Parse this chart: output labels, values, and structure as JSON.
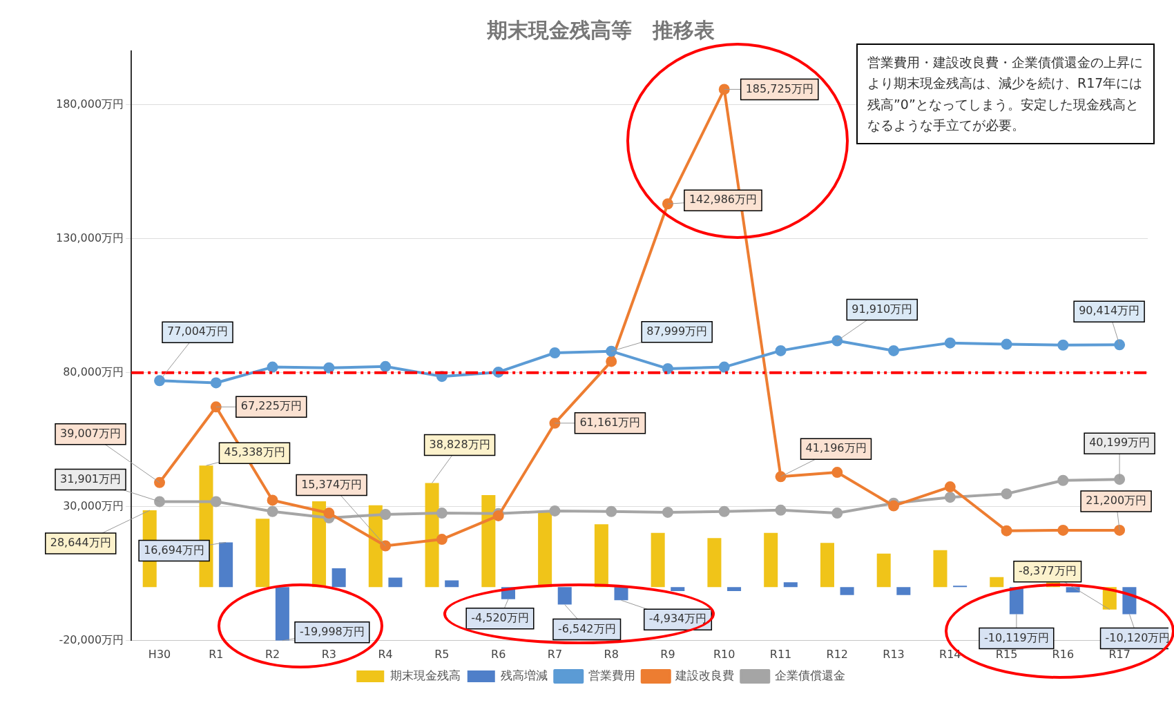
{
  "chart_data": {
    "type": "bar",
    "title": "期末現金残高等　推移表",
    "categories": [
      "H30",
      "R1",
      "R2",
      "R3",
      "R4",
      "R5",
      "R6",
      "R7",
      "R8",
      "R9",
      "R10",
      "R11",
      "R12",
      "R13",
      "R14",
      "R15",
      "R16",
      "R17"
    ],
    "series": [
      {
        "name": "期末現金残高",
        "color": "#f0c419",
        "values": [
          28644,
          45338,
          25500,
          32000,
          30500,
          38828,
          34300,
          28400,
          23400,
          20200,
          18300,
          20200,
          16500,
          12500,
          13800,
          3700,
          1700,
          -8377
        ],
        "value_labels": [
          "28,644万円",
          "45,338万円",
          null,
          null,
          null,
          "38,828万円",
          null,
          null,
          null,
          null,
          null,
          null,
          null,
          null,
          null,
          null,
          null,
          "-8,377万円"
        ]
      },
      {
        "name": "残高増減",
        "color": "#4f7fc9",
        "values": [
          null,
          16694,
          -19998,
          7000,
          3500,
          2500,
          -4520,
          -6542,
          -4934,
          -1500,
          -1500,
          1800,
          -3000,
          -3000,
          500,
          -10119,
          -2000,
          -10120
        ],
        "value_labels": [
          null,
          "16,694万円",
          "-19,998万円",
          null,
          null,
          null,
          "-4,520万円",
          "-6,542万円",
          "-4,934万円",
          null,
          null,
          null,
          null,
          null,
          null,
          "-10,119万円",
          null,
          "-10,120万円"
        ]
      },
      {
        "name": "営業費用",
        "type": "line",
        "color": "#5b9bd5",
        "values": [
          77004,
          76200,
          82100,
          81800,
          82300,
          78600,
          80200,
          87400,
          87999,
          81500,
          82100,
          88200,
          91910,
          88200,
          91100,
          90600,
          90300,
          90414
        ],
        "value_labels": [
          "77,004万円",
          null,
          null,
          null,
          null,
          null,
          null,
          null,
          "87,999万円",
          null,
          null,
          null,
          "91,910万円",
          null,
          null,
          null,
          null,
          "90,414万円"
        ]
      },
      {
        "name": "建設改良費",
        "type": "line",
        "color": "#ed7d31",
        "values": [
          39007,
          67225,
          32400,
          27600,
          15374,
          17800,
          26600,
          61161,
          84200,
          142986,
          185725,
          41196,
          42800,
          30300,
          37400,
          21000,
          21200,
          21200
        ],
        "value_labels": [
          "39,007万円",
          "67,225万円",
          null,
          null,
          "15,374万円",
          null,
          null,
          "61,161万円",
          null,
          "142,986万円",
          "185,725万円",
          "41,196万円",
          null,
          null,
          null,
          null,
          null,
          "21,200万円"
        ]
      },
      {
        "name": "企業債償還金",
        "type": "line",
        "color": "#a5a5a5",
        "values": [
          31901,
          31900,
          28200,
          25800,
          27100,
          27600,
          27400,
          28400,
          28200,
          27900,
          28200,
          28700,
          27600,
          31300,
          33500,
          34800,
          39800,
          40199
        ],
        "value_labels": [
          "31,901万円",
          null,
          null,
          null,
          null,
          null,
          null,
          null,
          null,
          null,
          null,
          null,
          null,
          null,
          null,
          null,
          null,
          "40,199万円"
        ]
      }
    ],
    "ylim": [
      -20000,
      200000
    ],
    "yticks": [
      {
        "value": -20000,
        "label": "-20,000万円"
      },
      {
        "value": 30000,
        "label": "30,000万円"
      },
      {
        "value": 80000,
        "label": "80,000万円"
      },
      {
        "value": 130000,
        "label": "130,000万円"
      },
      {
        "value": 180000,
        "label": "180,000万円"
      }
    ],
    "grid": "y",
    "legend": "bottom",
    "marker": "circle",
    "line_style": "solid",
    "ref_lines": [
      {
        "axis": "y",
        "value": 80000,
        "color": "#ff0000",
        "line_style": "dashed"
      }
    ],
    "annotations": [
      "営業費用・建設改良費・企業債償還金の上昇により期末現金残高は、減少を続け、R17年には残高”0”となってしまう。安定した現金残高となるような手立てが必要。"
    ]
  }
}
